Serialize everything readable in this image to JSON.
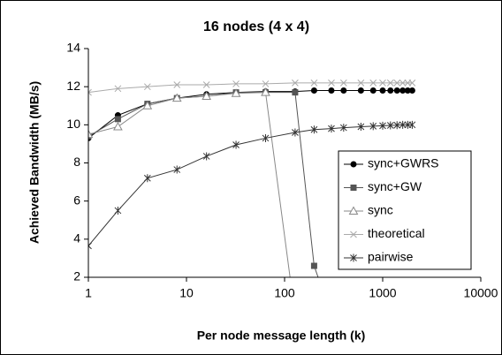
{
  "chart_data": {
    "type": "line",
    "title": "16 nodes (4 x 4)",
    "x_label": "Per node message length (k)",
    "y_label": "Achieved Bandwidth (MB/s)",
    "x": [
      1,
      2,
      4,
      8,
      16,
      32,
      64,
      128,
      200,
      300,
      400,
      600,
      800,
      1000,
      1200,
      1400,
      1600,
      1800,
      2000
    ],
    "series": [
      {
        "name": "sync+GWRS",
        "color": "#000000",
        "marker": "circle",
        "values": [
          9.3,
          10.5,
          11.1,
          11.4,
          11.6,
          11.7,
          11.75,
          11.75,
          11.8,
          11.8,
          11.8,
          11.8,
          11.8,
          11.8,
          11.8,
          11.8,
          11.8,
          11.8,
          11.8
        ]
      },
      {
        "name": "sync+GW",
        "color": "#555555",
        "marker": "square",
        "values": [
          9.4,
          10.3,
          11.1,
          11.4,
          11.5,
          11.7,
          11.7,
          11.7,
          2.6,
          0,
          null,
          null,
          null,
          null,
          null,
          null,
          null,
          null,
          null
        ]
      },
      {
        "name": "sync",
        "color": "#888888",
        "marker": "triangle",
        "values": [
          9.5,
          9.9,
          11.0,
          11.4,
          11.5,
          11.65,
          11.7,
          0,
          null,
          null,
          null,
          null,
          null,
          null,
          null,
          null,
          null,
          null,
          null
        ]
      },
      {
        "name": "theoretical",
        "color": "#aaaaaa",
        "marker": "x",
        "values": [
          11.7,
          11.9,
          12.0,
          12.1,
          12.1,
          12.15,
          12.15,
          12.2,
          12.2,
          12.2,
          12.2,
          12.2,
          12.2,
          12.2,
          12.2,
          12.2,
          12.2,
          12.2,
          12.2
        ]
      },
      {
        "name": "pairwise",
        "color": "#333333",
        "marker": "star",
        "values": [
          3.65,
          5.5,
          7.2,
          7.65,
          8.35,
          8.95,
          9.3,
          9.6,
          9.75,
          9.8,
          9.85,
          9.9,
          9.93,
          9.95,
          9.97,
          9.98,
          10.0,
          10.0,
          10.0
        ]
      }
    ],
    "xscale": "log",
    "xlim": [
      1,
      10000
    ],
    "xticks": [
      1,
      10,
      100,
      1000,
      10000
    ],
    "ylim": [
      2,
      14
    ],
    "yticks": [
      2,
      4,
      6,
      8,
      10,
      12,
      14
    ],
    "grid": false,
    "legend": "right"
  }
}
